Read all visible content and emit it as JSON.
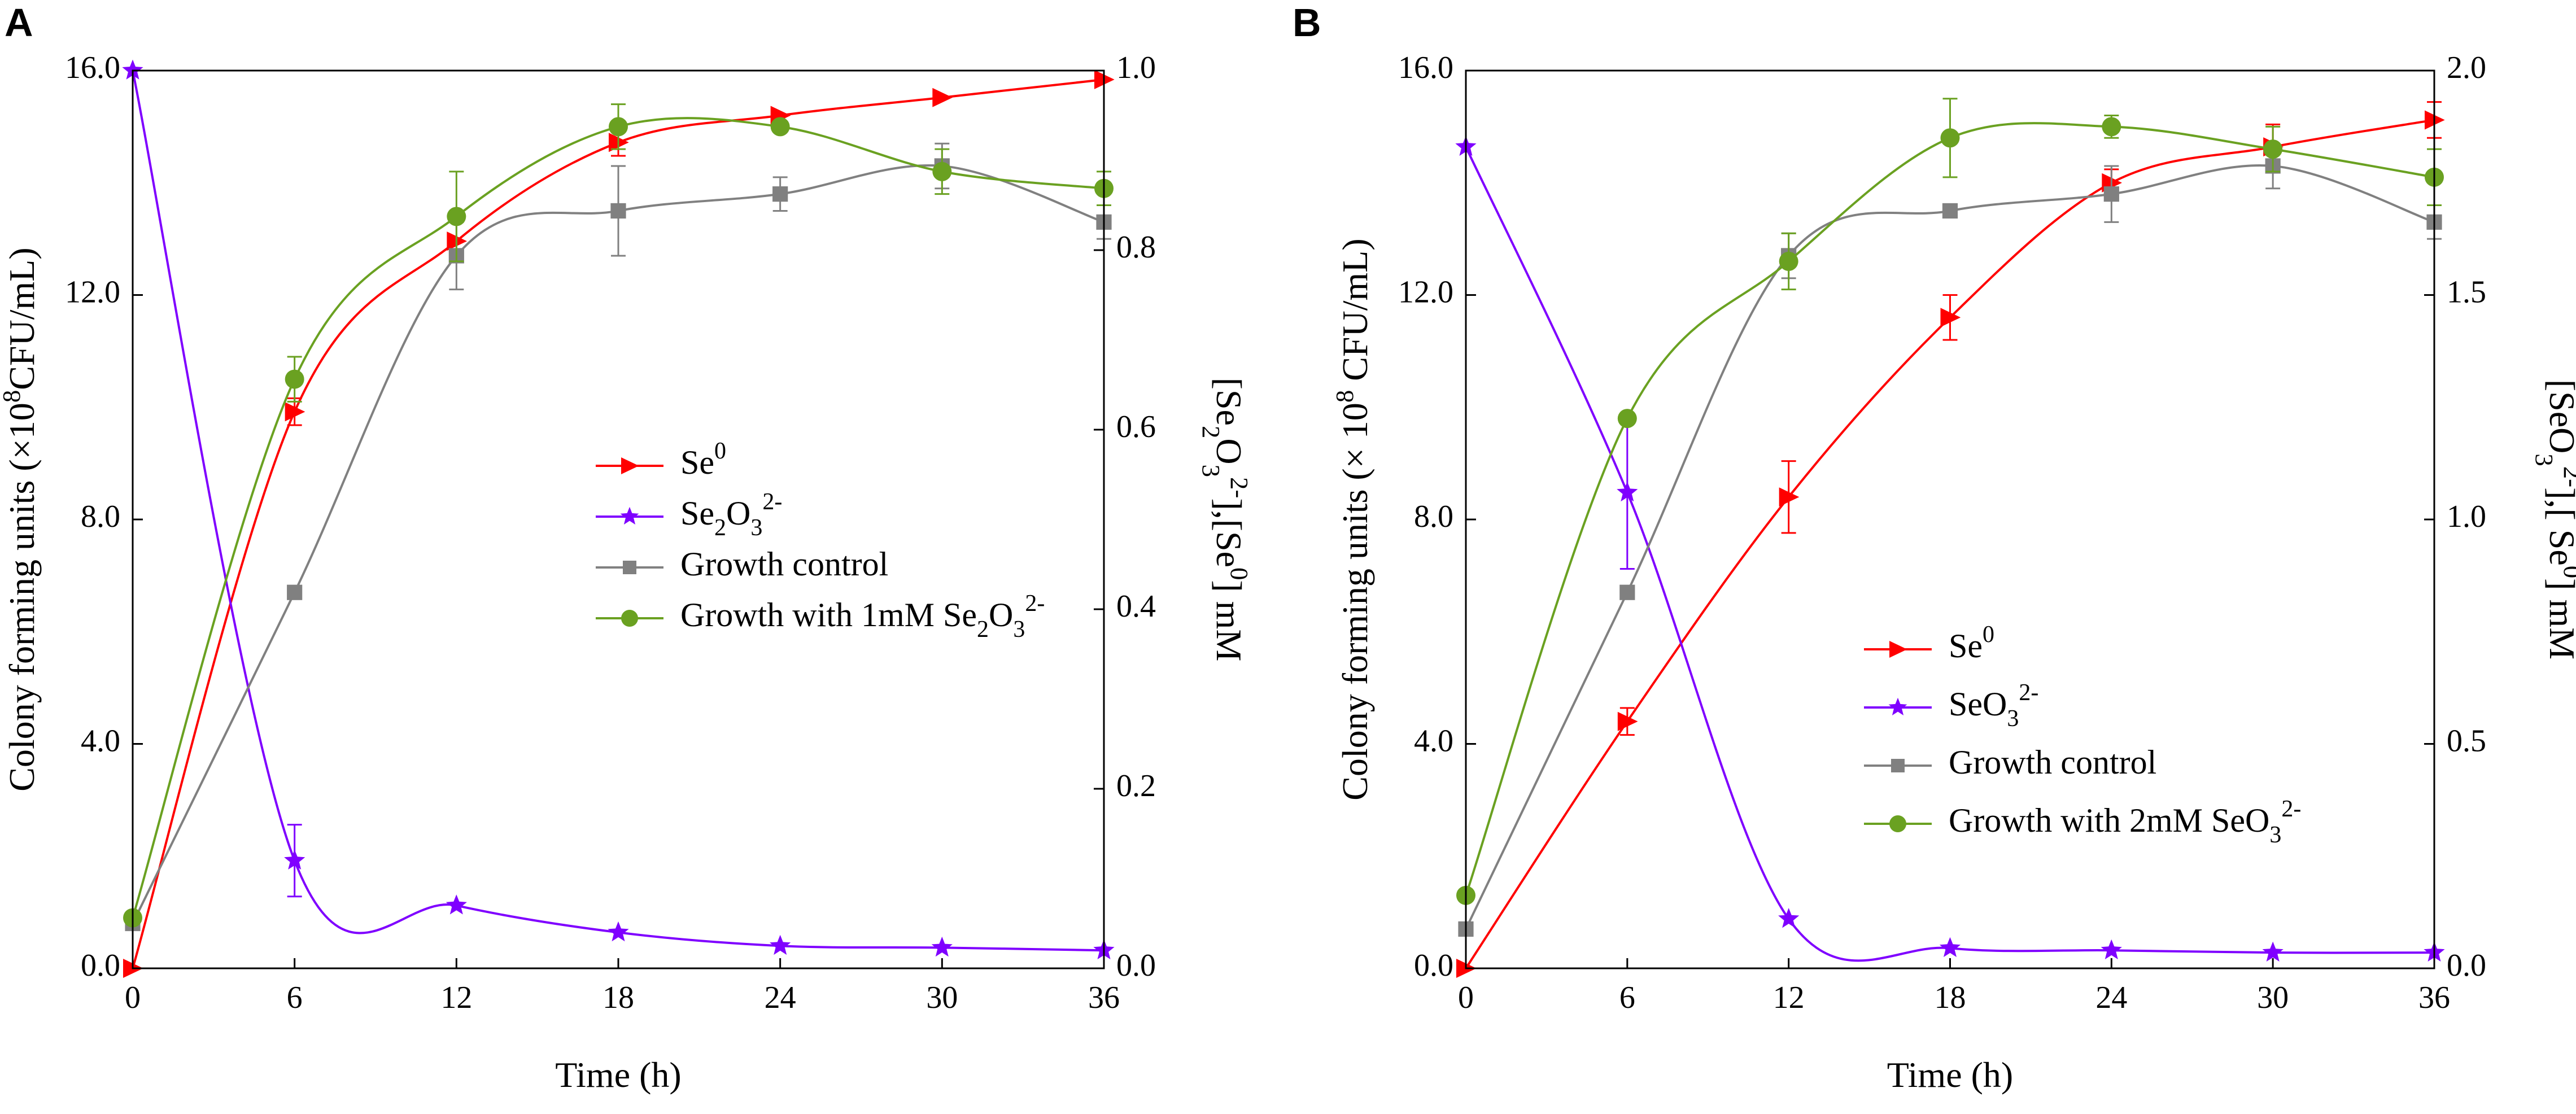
{
  "chart_data": [
    {
      "panel_label": "A",
      "type": "line",
      "xlabel": "Time (h)",
      "ylabel": {
        "pre": "Colony forming units (×10",
        "sup": "8",
        "post": "CFU/mL)"
      },
      "y2label": {
        "p1": "[Se",
        "s1": "2",
        "p2": "O",
        "s2": "3",
        "sup1": "2-",
        "p3": "],[Se",
        "sup2": "0",
        "p4": "] mM"
      },
      "xlim": [
        0,
        36
      ],
      "xticks": [
        0,
        6,
        12,
        18,
        24,
        30,
        36
      ],
      "ylim": [
        0,
        16
      ],
      "yticks": [
        "0.0",
        "4.0",
        "8.0",
        "12.0",
        "16.0"
      ],
      "y2lim": [
        0,
        1.0
      ],
      "y2ticks": [
        "0.0",
        "0.2",
        "0.4",
        "0.6",
        "0.8",
        "1.0"
      ],
      "legend_position": "center-right",
      "series": [
        {
          "name": "Se",
          "name_sup": "0",
          "axis": "right",
          "color": "#ff0000",
          "marker": "triangle-right",
          "x": [
            0,
            6,
            12,
            18,
            24,
            30,
            36
          ],
          "values": [
            0.0,
            0.62,
            0.81,
            0.92,
            0.95,
            0.97,
            0.99
          ],
          "errors": [
            0,
            0.015,
            0,
            0.015,
            0,
            0,
            0
          ]
        },
        {
          "name": "Se",
          "name_sub": "2",
          "name_mid": "O",
          "name_sub2": "3",
          "name_sup": "2-",
          "axis": "right",
          "color": "#7f00ff",
          "marker": "star",
          "x": [
            0,
            6,
            12,
            18,
            24,
            30,
            36
          ],
          "values": [
            1.0,
            0.12,
            0.07,
            0.04,
            0.025,
            0.023,
            0.02
          ],
          "errors": [
            0,
            0.04,
            0,
            0,
            0,
            0,
            0
          ]
        },
        {
          "name": "Growth control",
          "axis": "left",
          "color": "#808080",
          "marker": "square",
          "x": [
            0,
            6,
            12,
            18,
            24,
            30,
            36
          ],
          "values": [
            0.8,
            6.7,
            12.7,
            13.5,
            13.8,
            14.3,
            13.3
          ],
          "errors": [
            0,
            0,
            0.6,
            0.8,
            0.3,
            0.4,
            0.3
          ]
        },
        {
          "name": "Growth with 1mM Se",
          "name_sub": "2",
          "name_mid": "O",
          "name_sub2": "3",
          "name_sup": "2-",
          "axis": "left",
          "color": "#6aa121",
          "marker": "circle",
          "x": [
            0,
            6,
            12,
            18,
            24,
            30,
            36
          ],
          "values": [
            0.9,
            10.5,
            13.4,
            15.0,
            15.0,
            14.2,
            13.9
          ],
          "errors": [
            0,
            0.4,
            0.8,
            0.4,
            0,
            0.4,
            0.3
          ]
        }
      ]
    },
    {
      "panel_label": "B",
      "type": "line",
      "xlabel": "Time (h)",
      "ylabel": {
        "pre": "Colony forming units (× 10",
        "sup": "8",
        "post": " CFU/mL)"
      },
      "y2label": {
        "p1": "[SeO",
        "s1": "3",
        "sup1": "2-",
        "p3": "],[ Se",
        "sup2": "0",
        "p4": "] mM"
      },
      "xlim": [
        0,
        36
      ],
      "xticks": [
        0,
        6,
        12,
        18,
        24,
        30,
        36
      ],
      "ylim": [
        0,
        16
      ],
      "yticks": [
        "0.0",
        "4.0",
        "8.0",
        "12.0",
        "16.0"
      ],
      "y2lim": [
        0,
        2.0
      ],
      "y2ticks": [
        "0.0",
        "0.5",
        "1.0",
        "1.5",
        "2.0"
      ],
      "legend_position": "lower-right",
      "series": [
        {
          "name": "Se",
          "name_sup": "0",
          "axis": "right",
          "color": "#ff0000",
          "marker": "triangle-right",
          "x": [
            0,
            6,
            12,
            18,
            24,
            30,
            36
          ],
          "values": [
            0.0,
            0.55,
            1.05,
            1.45,
            1.75,
            1.83,
            1.89
          ],
          "errors": [
            0,
            0.03,
            0.08,
            0.05,
            0.03,
            0.05,
            0.04
          ]
        },
        {
          "name": "SeO",
          "name_sub": "3",
          "name_sup": "2-",
          "axis": "right",
          "color": "#7f00ff",
          "marker": "star",
          "x": [
            0,
            6,
            12,
            18,
            24,
            30,
            36
          ],
          "values": [
            1.83,
            1.06,
            0.11,
            0.045,
            0.04,
            0.035,
            0.035
          ],
          "errors": [
            0,
            0.17,
            0,
            0,
            0,
            0,
            0
          ]
        },
        {
          "name": "Growth control",
          "axis": "left",
          "color": "#808080",
          "marker": "square",
          "x": [
            0,
            6,
            12,
            18,
            24,
            30,
            36
          ],
          "values": [
            0.7,
            6.7,
            12.7,
            13.5,
            13.8,
            14.3,
            13.3
          ],
          "errors": [
            0,
            0,
            0.4,
            0,
            0.5,
            0.4,
            0.3
          ]
        },
        {
          "name": "Growth with 2mM SeO",
          "name_sub": "3",
          "name_sup": "2-",
          "axis": "left",
          "color": "#6aa121",
          "marker": "circle",
          "x": [
            0,
            6,
            12,
            18,
            24,
            30,
            36
          ],
          "values": [
            1.3,
            9.8,
            12.6,
            14.8,
            15.0,
            14.6,
            14.1
          ],
          "errors": [
            0,
            0,
            0.5,
            0.7,
            0.2,
            0.4,
            0.5
          ]
        }
      ]
    }
  ]
}
